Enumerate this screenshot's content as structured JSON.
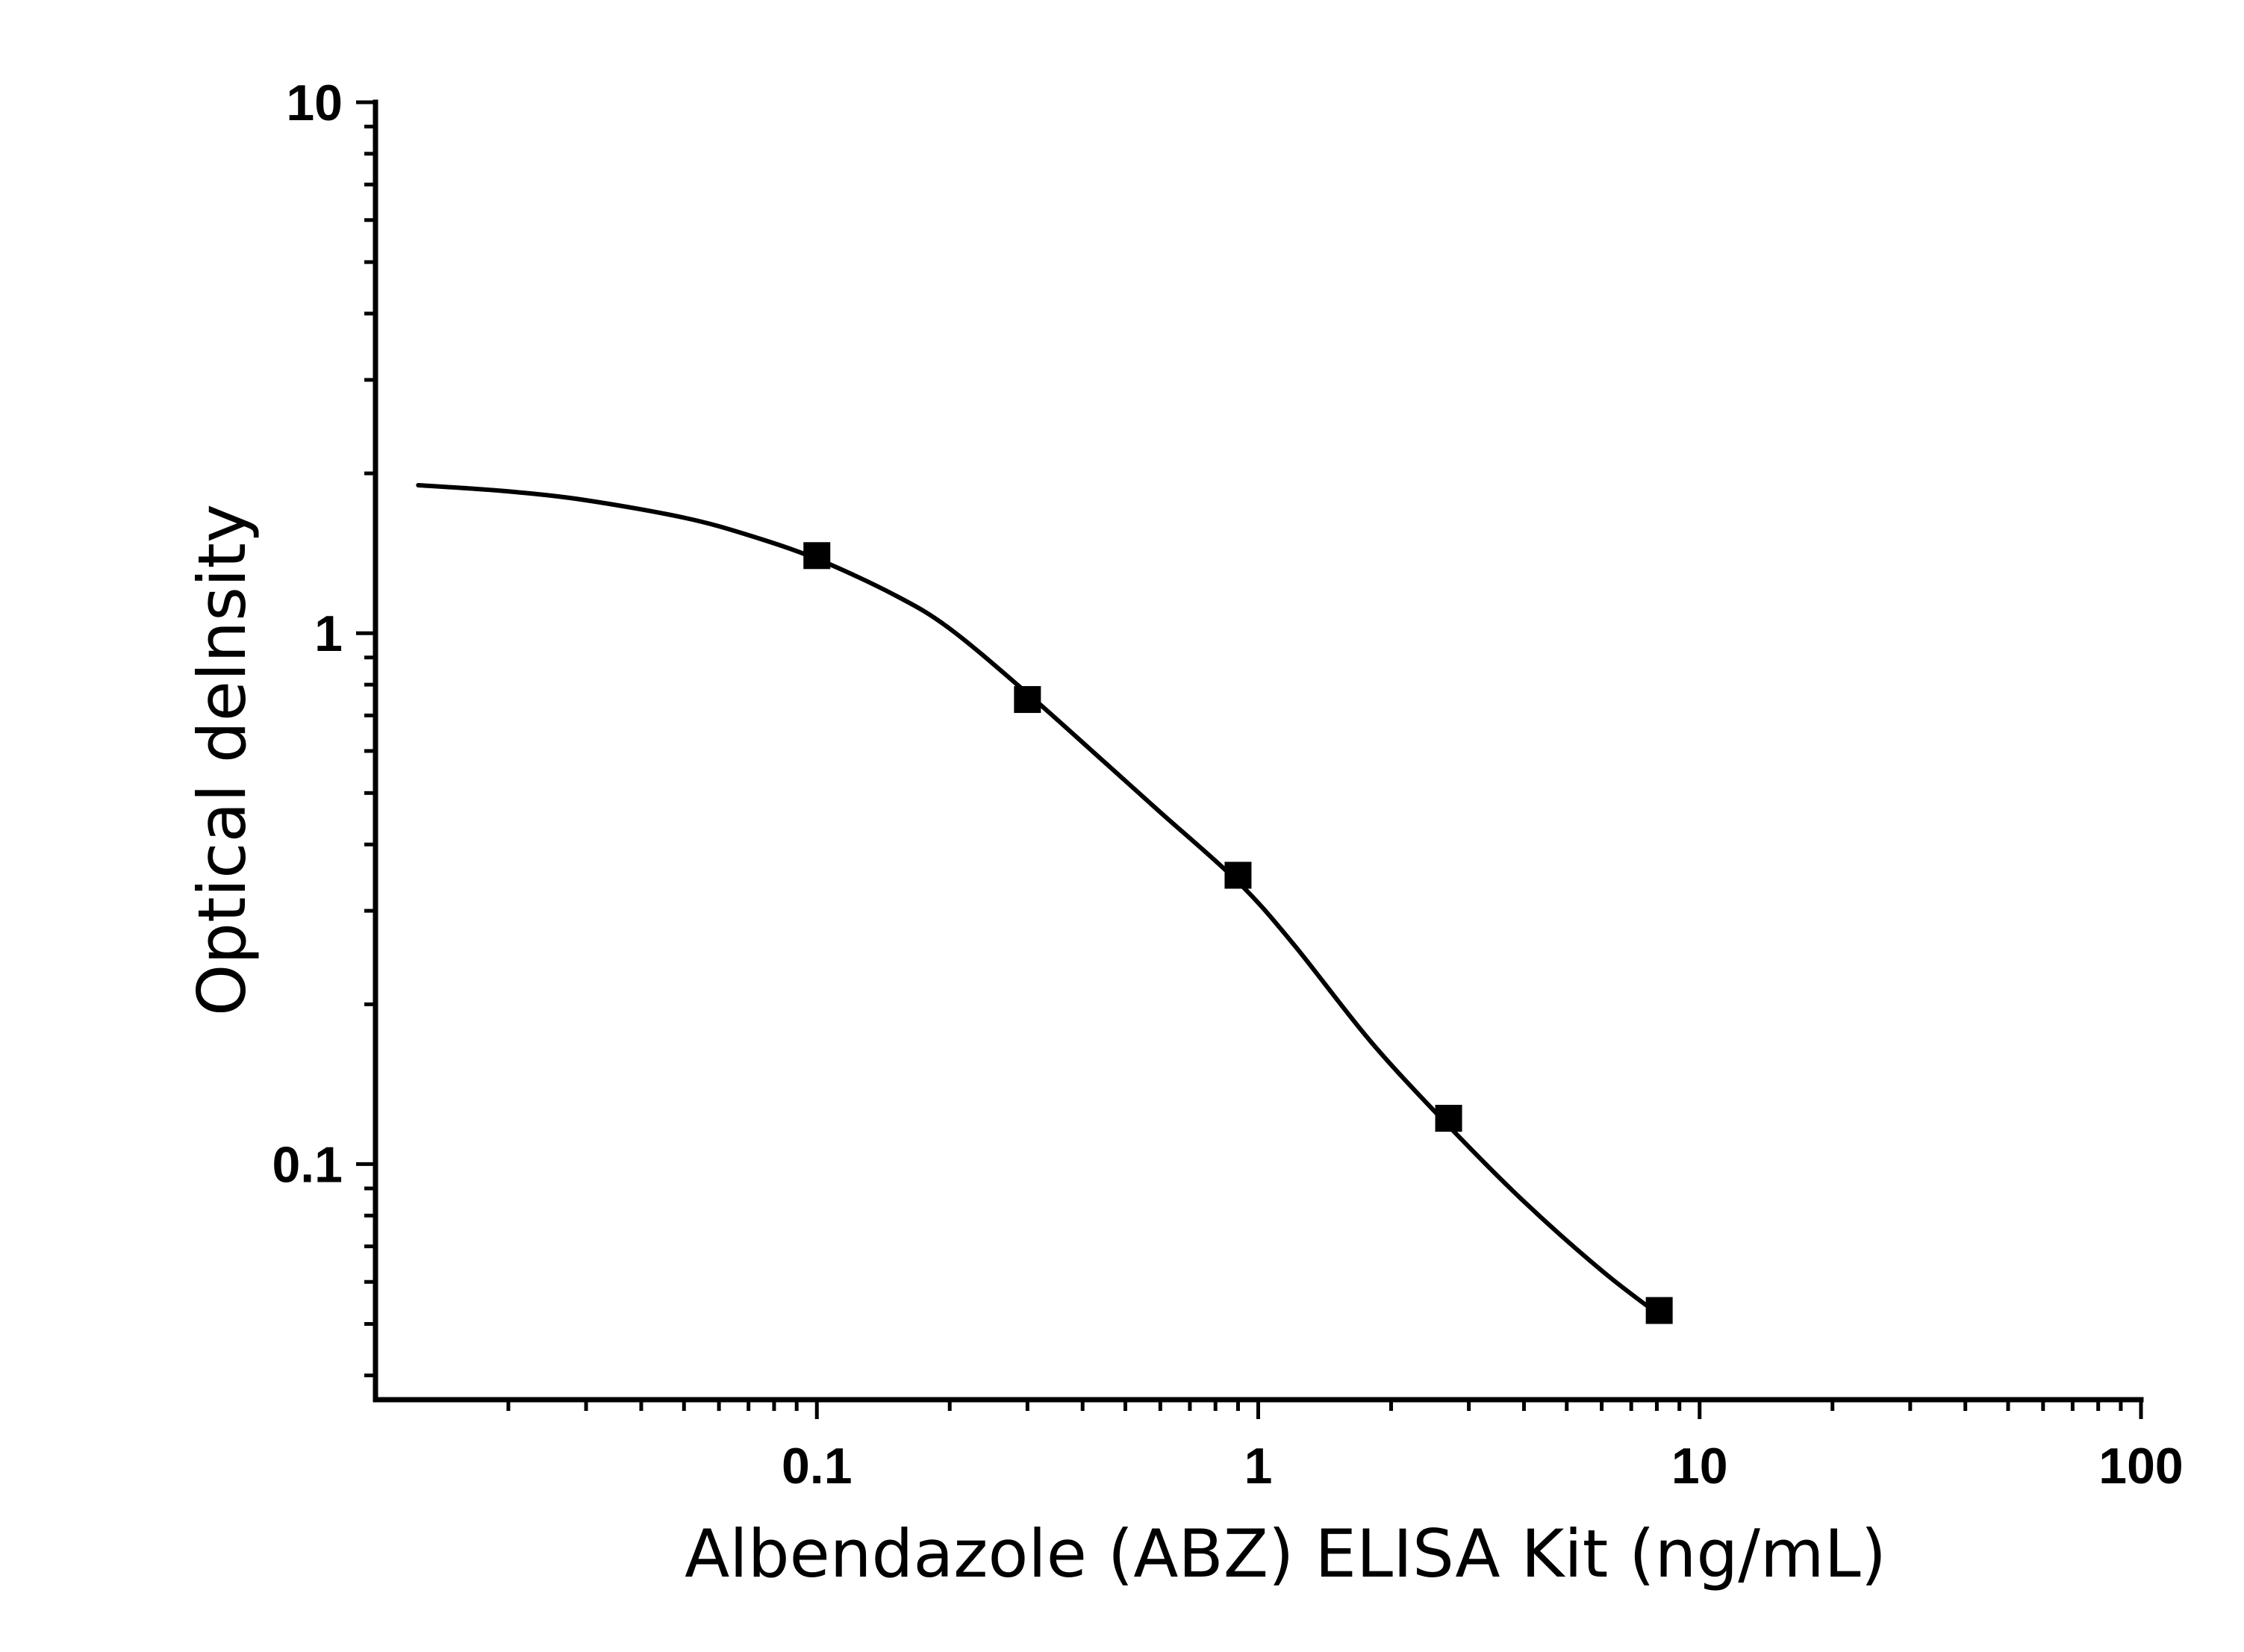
{
  "chart_data": {
    "type": "scatter",
    "xlabel": "Albendazole (ABZ) ELISA Kit (ng/mL)",
    "ylabel": "Optical delnsity",
    "x_scale": "log",
    "y_scale": "log",
    "xlim": [
      0.01,
      100
    ],
    "ylim": [
      0.036,
      10
    ],
    "x_ticks": [
      {
        "value": 0.1,
        "label": "0.1"
      },
      {
        "value": 1,
        "label": "1"
      },
      {
        "value": 10,
        "label": "10"
      },
      {
        "value": 100,
        "label": "100"
      }
    ],
    "y_ticks": [
      {
        "value": 0.1,
        "label": "0.1"
      },
      {
        "value": 1,
        "label": "1"
      },
      {
        "value": 10,
        "label": "10"
      }
    ],
    "grid": false,
    "legend": "none",
    "series": [
      {
        "marker": "square",
        "x": [
          0.1,
          0.3,
          0.9,
          2.7,
          8.1
        ],
        "y": [
          1.4,
          0.75,
          0.35,
          0.122,
          0.053
        ]
      }
    ],
    "fit_curve": {
      "model": "four-parameter logistic",
      "x": [
        0.0125,
        0.02,
        0.03,
        0.05,
        0.07,
        0.1,
        0.15,
        0.2,
        0.3,
        0.45,
        0.6,
        0.9,
        1.2,
        1.8,
        2.7,
        4.0,
        6.0,
        8.1
      ],
      "y": [
        1.9,
        1.85,
        1.78,
        1.65,
        1.53,
        1.38,
        1.18,
        1.02,
        0.77,
        0.57,
        0.46,
        0.34,
        0.26,
        0.17,
        0.118,
        0.085,
        0.063,
        0.052
      ]
    },
    "colors": {
      "axis": "#000000",
      "curve": "#000000",
      "marker": "#000000",
      "background": "#ffffff"
    }
  }
}
